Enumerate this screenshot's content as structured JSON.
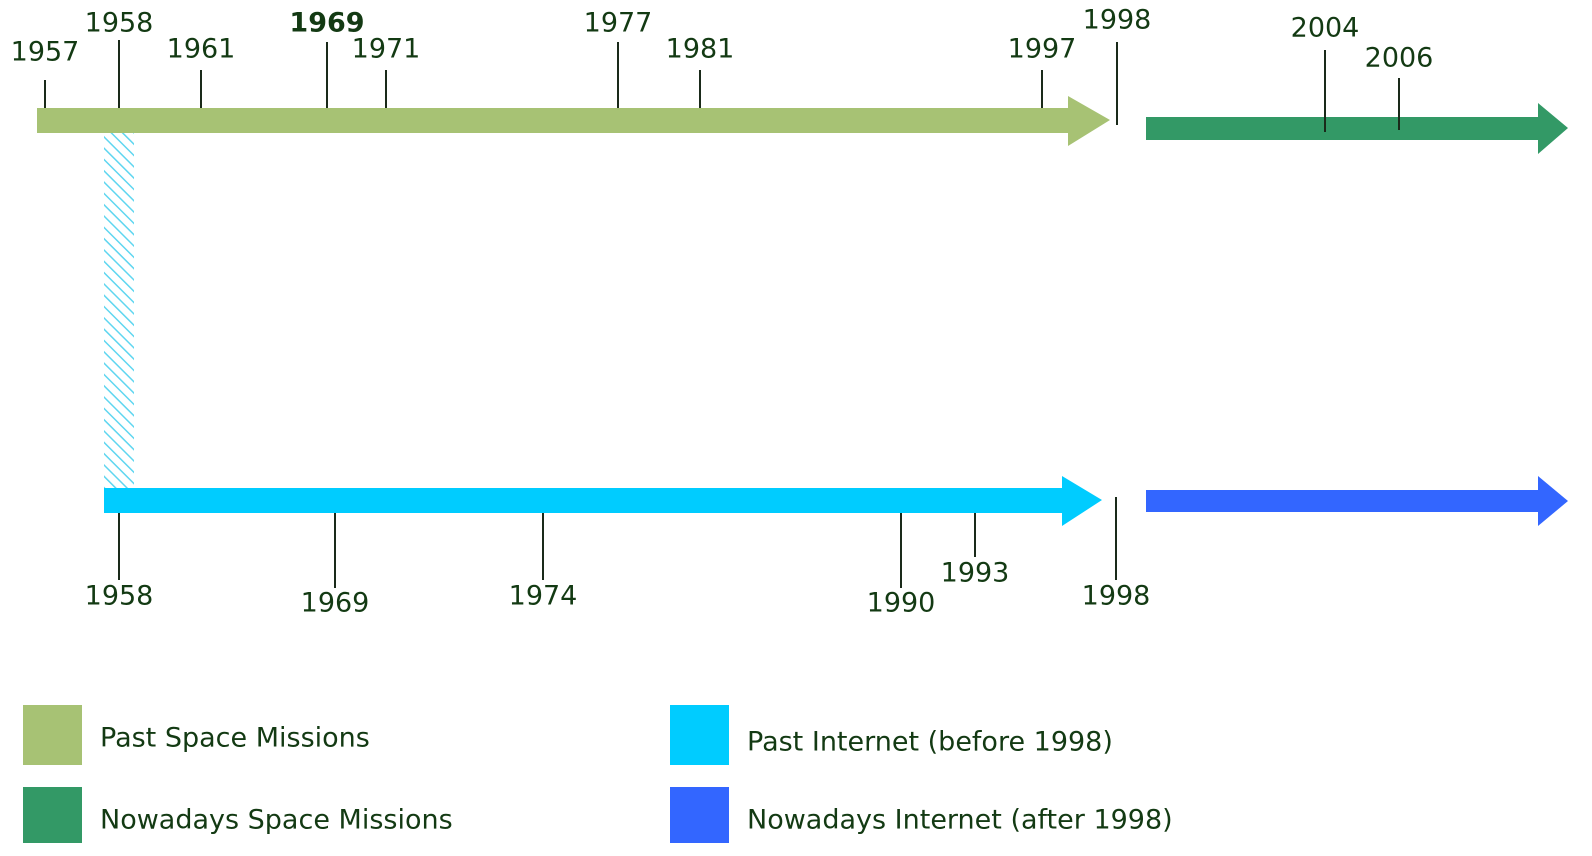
{
  "space_timeline": {
    "past_years": [
      "1957",
      "1958",
      "1961",
      "1969",
      "1971",
      "1977",
      "1981",
      "1997",
      "1998"
    ],
    "nowadays_years": [
      "2004",
      "2006"
    ]
  },
  "internet_timeline": {
    "past_years": [
      "1958",
      "1969",
      "1974",
      "1990",
      "1993",
      "1998"
    ]
  },
  "legend": [
    "Past Space Missions",
    "Nowadays Space Missions",
    "Past Internet (before 1998)",
    "Nowadays Internet (after 1998)"
  ]
}
